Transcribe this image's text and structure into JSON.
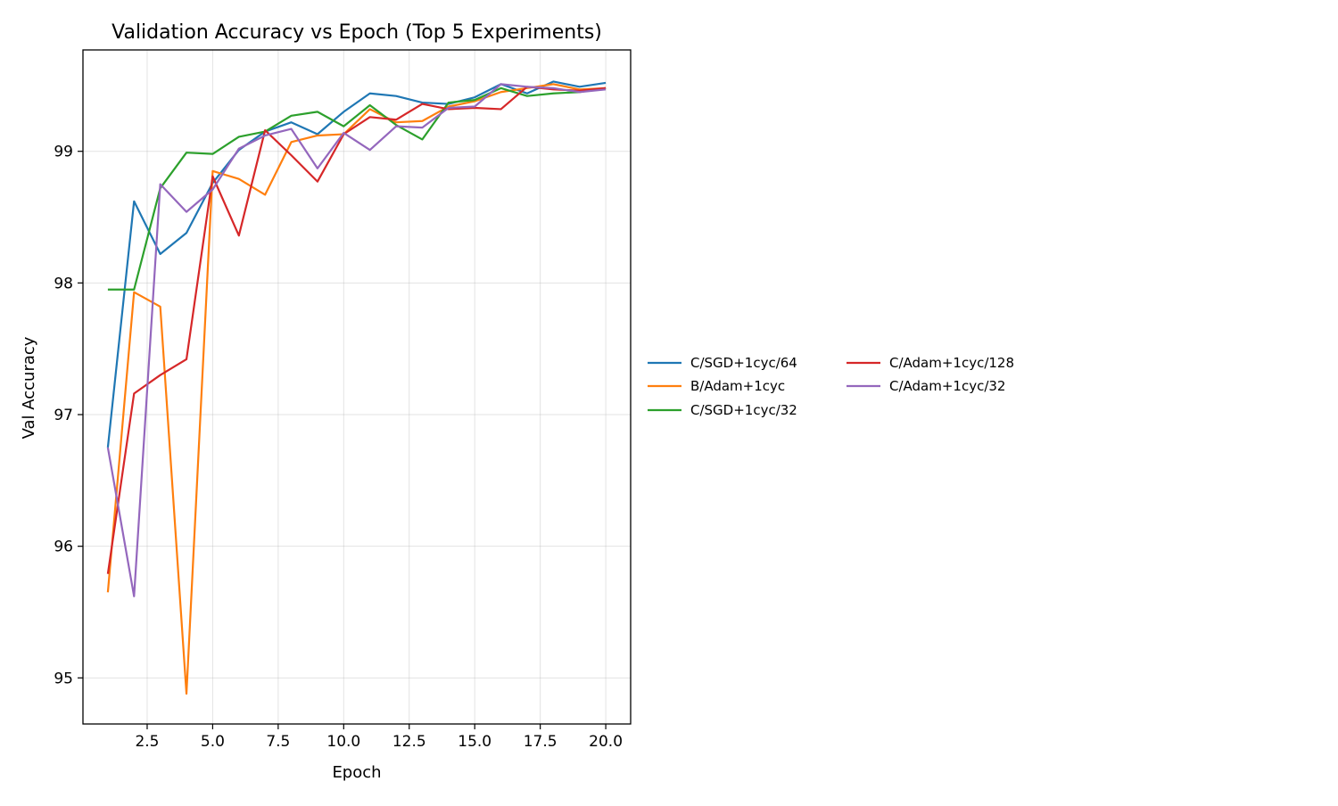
{
  "chart_data": {
    "type": "line",
    "title": "Validation Accuracy vs Epoch (Top 5 Experiments)",
    "xlabel": "Epoch",
    "ylabel": "Val Accuracy",
    "xlim": [
      0.05,
      20.95
    ],
    "ylim": [
      94.65,
      99.77
    ],
    "xticks": [
      2.5,
      5.0,
      7.5,
      10.0,
      12.5,
      15.0,
      17.5,
      20.0
    ],
    "xtick_labels": [
      "2.5",
      "5.0",
      "7.5",
      "10.0",
      "12.5",
      "15.0",
      "17.5",
      "20.0"
    ],
    "yticks": [
      95,
      96,
      97,
      98,
      99
    ],
    "ytick_labels": [
      "95",
      "96",
      "97",
      "98",
      "99"
    ],
    "grid": true,
    "legend_position": "right, two columns",
    "x": [
      1,
      2,
      3,
      4,
      5,
      6,
      7,
      8,
      9,
      10,
      11,
      12,
      13,
      14,
      15,
      16,
      17,
      18,
      19,
      20
    ],
    "series": [
      {
        "name": "C/SGD+1cyc/64",
        "color": "#1f77b4",
        "values": [
          96.75,
          98.62,
          98.22,
          98.38,
          98.76,
          99.01,
          99.15,
          99.22,
          99.13,
          99.3,
          99.44,
          99.42,
          99.37,
          99.36,
          99.41,
          99.51,
          99.44,
          99.53,
          99.49,
          99.52
        ]
      },
      {
        "name": "B/Adam+1cyc",
        "color": "#ff7f0e",
        "values": [
          95.65,
          97.93,
          97.82,
          94.88,
          98.85,
          98.79,
          98.67,
          99.07,
          99.12,
          99.13,
          99.32,
          99.22,
          99.23,
          99.34,
          99.38,
          99.45,
          99.48,
          99.51,
          99.47,
          99.48
        ]
      },
      {
        "name": "C/SGD+1cyc/32",
        "color": "#2ca02c",
        "values": [
          97.95,
          97.95,
          98.72,
          98.99,
          98.98,
          99.11,
          99.15,
          99.27,
          99.3,
          99.19,
          99.35,
          99.2,
          99.09,
          99.37,
          99.39,
          99.48,
          99.42,
          99.44,
          99.45,
          99.48
        ]
      },
      {
        "name": "C/Adam+1cyc/128",
        "color": "#d62728",
        "values": [
          95.79,
          97.16,
          97.3,
          97.42,
          98.81,
          98.36,
          99.16,
          98.97,
          98.77,
          99.13,
          99.26,
          99.24,
          99.36,
          99.32,
          99.33,
          99.32,
          99.49,
          99.47,
          99.46,
          99.48
        ]
      },
      {
        "name": "C/Adam+1cyc/32",
        "color": "#9467bd",
        "values": [
          96.75,
          95.62,
          98.75,
          98.54,
          98.71,
          99.02,
          99.12,
          99.17,
          98.87,
          99.14,
          99.01,
          99.19,
          99.18,
          99.33,
          99.34,
          99.51,
          99.49,
          99.48,
          99.45,
          99.47
        ]
      }
    ]
  }
}
